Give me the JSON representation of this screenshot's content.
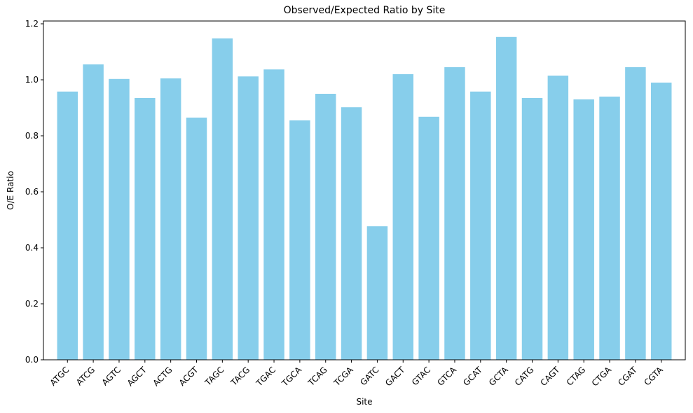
{
  "chart_data": {
    "type": "bar",
    "title": "Observed/Expected Ratio by Site",
    "xlabel": "Site",
    "ylabel": "O/E Ratio",
    "ylim": [
      0,
      1.21
    ],
    "yticks": [
      0.0,
      0.2,
      0.4,
      0.6,
      0.8,
      1.0,
      1.2
    ],
    "ytick_labels": [
      "0.0",
      "0.2",
      "0.4",
      "0.6",
      "0.8",
      "1.0",
      "1.2"
    ],
    "grid": false,
    "bar_color": "#87CEEB",
    "categories": [
      "ATGC",
      "ATCG",
      "AGTC",
      "AGCT",
      "ACTG",
      "ACGT",
      "TAGC",
      "TACG",
      "TGAC",
      "TGCA",
      "TCAG",
      "TCGA",
      "GATC",
      "GACT",
      "GTAC",
      "GTCA",
      "GCAT",
      "GCTA",
      "CATG",
      "CAGT",
      "CTAG",
      "CTGA",
      "CGAT",
      "CGTA"
    ],
    "values": [
      0.958,
      1.055,
      1.003,
      0.935,
      1.005,
      0.865,
      1.148,
      1.012,
      1.037,
      0.855,
      0.95,
      0.902,
      0.477,
      1.02,
      0.868,
      1.045,
      0.958,
      1.153,
      0.935,
      1.015,
      0.93,
      0.94,
      1.045,
      0.99
    ]
  }
}
